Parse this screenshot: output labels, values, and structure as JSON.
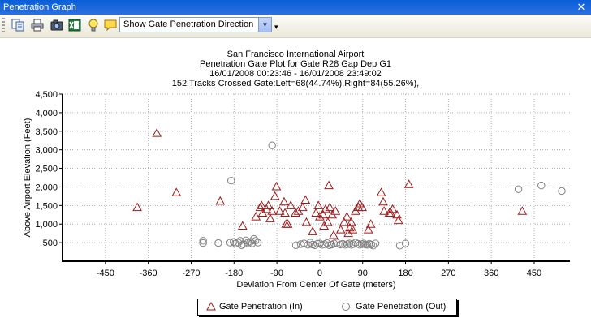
{
  "window": {
    "title": "Penetration Graph",
    "close_glyph": "✕"
  },
  "toolbar": {
    "icons": [
      "copy-icon",
      "print-icon",
      "camera-icon",
      "export-excel-icon",
      "lightbulb-icon",
      "comment-icon"
    ],
    "combo_value": "Show Gate Penetration Direction"
  },
  "chart_data": {
    "type": "scatter",
    "title_lines": [
      "San Francisco International Airport",
      "Penetration Gate Plot for Gate R28 Gap Dep G1",
      "16/01/2008 00:23:46 - 16/01/2008 23:49:02",
      "152 Tracks Crossed Gate:Left=68(44.74%),Right=84(55.26%),"
    ],
    "xlabel": "Deviation From Center Of Gate (meters)",
    "ylabel": "Above Airport Elevation (Feet)",
    "xlim": [
      -540,
      525
    ],
    "ylim": [
      0,
      4500
    ],
    "xticks": [
      -450,
      -360,
      -270,
      -180,
      -90,
      0,
      90,
      180,
      270,
      360,
      450
    ],
    "xtick_labels": [
      "-450",
      "-360",
      "-270",
      "-180",
      "-90",
      "0",
      "90",
      "180",
      "270",
      "360",
      "450"
    ],
    "yticks": [
      500,
      1000,
      1500,
      2000,
      2500,
      3000,
      3500,
      4000,
      4500
    ],
    "ytick_labels": [
      "500",
      "1,000",
      "1,500",
      "2,000",
      "2,500",
      "3,000",
      "3,500",
      "4,000",
      "4,500"
    ],
    "grid": true,
    "legend_position": "bottom-center",
    "series": [
      {
        "name": "Gate Penetration (In)",
        "marker": "triangle",
        "color": "#a01818",
        "points": [
          [
            -342,
            3450
          ],
          [
            -383,
            1450
          ],
          [
            -301,
            1850
          ],
          [
            -209,
            1620
          ],
          [
            -162,
            950
          ],
          [
            -134,
            1200
          ],
          [
            -125,
            1450
          ],
          [
            -122,
            1500
          ],
          [
            -120,
            1300
          ],
          [
            -112,
            1400
          ],
          [
            -108,
            1500
          ],
          [
            -104,
            1150
          ],
          [
            -100,
            1350
          ],
          [
            -94,
            1750
          ],
          [
            -91,
            2010
          ],
          [
            -84,
            1350
          ],
          [
            -75,
            1600
          ],
          [
            -73,
            1300
          ],
          [
            -71,
            1000
          ],
          [
            -67,
            1000
          ],
          [
            -61,
            1500
          ],
          [
            -51,
            1300
          ],
          [
            -45,
            1350
          ],
          [
            -36,
            1450
          ],
          [
            -30,
            1650
          ],
          [
            -28,
            1050
          ],
          [
            -15,
            800
          ],
          [
            -8,
            1300
          ],
          [
            -3,
            1500
          ],
          [
            0,
            1200
          ],
          [
            7,
            1250
          ],
          [
            9,
            950
          ],
          [
            12,
            1400
          ],
          [
            17,
            1050
          ],
          [
            19,
            2040
          ],
          [
            21,
            1450
          ],
          [
            26,
            1250
          ],
          [
            29,
            700
          ],
          [
            33,
            1350
          ],
          [
            44,
            850
          ],
          [
            51,
            1050
          ],
          [
            57,
            1200
          ],
          [
            60,
            750
          ],
          [
            63,
            900
          ],
          [
            66,
            1050
          ],
          [
            69,
            850
          ],
          [
            75,
            1350
          ],
          [
            81,
            1450
          ],
          [
            84,
            1550
          ],
          [
            89,
            1450
          ],
          [
            102,
            850
          ],
          [
            107,
            1000
          ],
          [
            129,
            1850
          ],
          [
            133,
            1600
          ],
          [
            135,
            1350
          ],
          [
            146,
            1300
          ],
          [
            149,
            1300
          ],
          [
            153,
            1400
          ],
          [
            162,
            1250
          ],
          [
            165,
            1100
          ],
          [
            187,
            2070
          ],
          [
            425,
            1350
          ]
        ]
      },
      {
        "name": "Gate Penetration (Out)",
        "marker": "circle",
        "color": "#808080",
        "points": [
          [
            -100,
            3120
          ],
          [
            -186,
            2170
          ],
          [
            -245,
            550
          ],
          [
            -245,
            490
          ],
          [
            -213,
            490
          ],
          [
            -188,
            500
          ],
          [
            -181,
            520
          ],
          [
            -177,
            480
          ],
          [
            -171,
            500
          ],
          [
            -167,
            550
          ],
          [
            -164,
            430
          ],
          [
            -160,
            460
          ],
          [
            -155,
            560
          ],
          [
            -151,
            500
          ],
          [
            -146,
            520
          ],
          [
            -142,
            480
          ],
          [
            -138,
            600
          ],
          [
            -135,
            550
          ],
          [
            -130,
            500
          ],
          [
            -50,
            430
          ],
          [
            -40,
            460
          ],
          [
            -33,
            480
          ],
          [
            -25,
            440
          ],
          [
            -20,
            500
          ],
          [
            -15,
            450
          ],
          [
            -10,
            430
          ],
          [
            -5,
            470
          ],
          [
            0,
            480
          ],
          [
            5,
            440
          ],
          [
            10,
            460
          ],
          [
            15,
            490
          ],
          [
            20,
            430
          ],
          [
            25,
            450
          ],
          [
            30,
            480
          ],
          [
            35,
            500
          ],
          [
            43,
            450
          ],
          [
            48,
            470
          ],
          [
            53,
            440
          ],
          [
            58,
            460
          ],
          [
            62,
            480
          ],
          [
            66,
            440
          ],
          [
            70,
            460
          ],
          [
            75,
            500
          ],
          [
            80,
            470
          ],
          [
            84,
            440
          ],
          [
            88,
            460
          ],
          [
            92,
            480
          ],
          [
            96,
            450
          ],
          [
            100,
            440
          ],
          [
            104,
            470
          ],
          [
            108,
            450
          ],
          [
            112,
            420
          ],
          [
            117,
            480
          ],
          [
            168,
            420
          ],
          [
            180,
            480
          ],
          [
            417,
            1940
          ],
          [
            465,
            2040
          ],
          [
            508,
            1890
          ]
        ]
      }
    ]
  }
}
